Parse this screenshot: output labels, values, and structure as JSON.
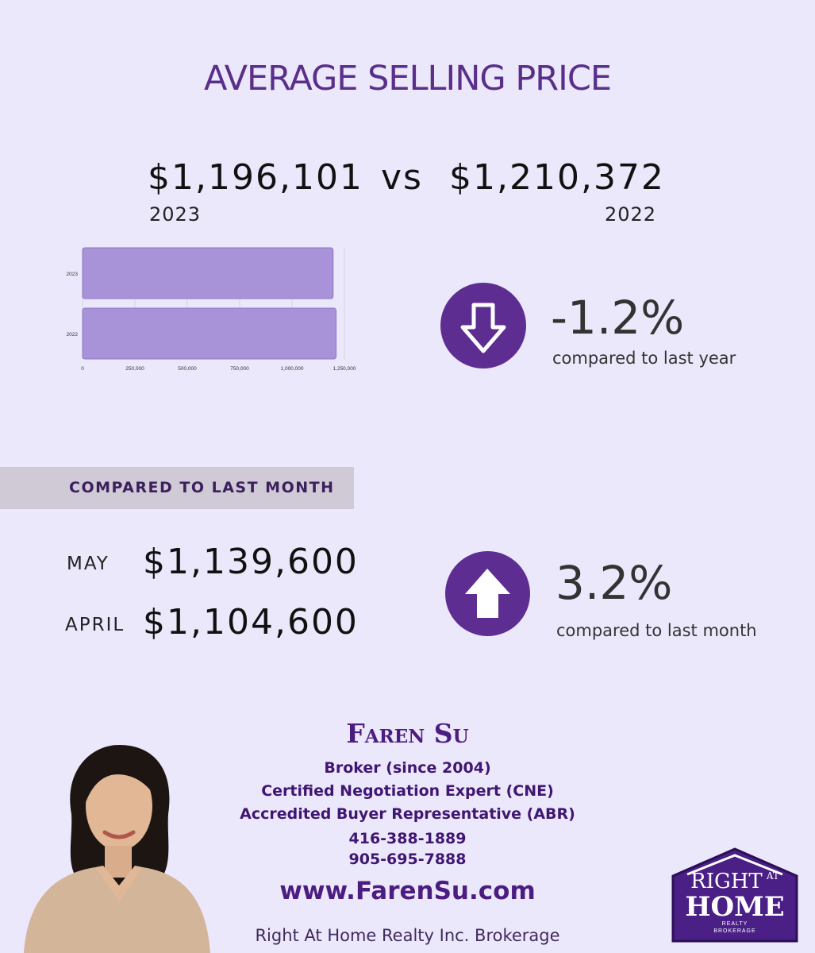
{
  "title": "AVERAGE SELLING PRICE",
  "yearly": {
    "price_2023": "$1,196,101",
    "vs": "vs",
    "price_2022": "$1,210,372",
    "label_2023": "2023",
    "label_2022": "2022",
    "change": "-1.2%",
    "change_caption": "compared to last year",
    "direction_icon": "arrow-down-icon"
  },
  "chart_data": {
    "type": "bar",
    "orientation": "horizontal",
    "categories": [
      "2023",
      "2022"
    ],
    "values": [
      1196101,
      1210372
    ],
    "xlim": [
      0,
      1250000
    ],
    "x_ticks": [
      "0",
      "250,000",
      "500,000",
      "750,000",
      "1,000,000",
      "1,250,000"
    ],
    "bar_color": "#a892d8",
    "grid": true
  },
  "monthly": {
    "banner": "COMPARED TO LAST MONTH",
    "month1_label": "MAY",
    "month1_price": "$1,139,600",
    "month2_label": "APRIL",
    "month2_price": "$1,104,600",
    "change": "3.2%",
    "change_caption": "compared to last month",
    "direction_icon": "arrow-up-icon"
  },
  "agent": {
    "name": "Faren Su",
    "line1": "Broker (since 2004)",
    "line2": "Certified Negotiation Expert (CNE)",
    "line3": "Accredited Buyer Representative (ABR)",
    "phone1": "416-388-1889",
    "phone2": "905-695-7888",
    "website": "www.FarenSu.com",
    "brokerage": "Right At Home Realty Inc. Brokerage"
  },
  "logo": {
    "line1": "RIGHT",
    "line1b": "AT",
    "line2": "HOME",
    "line3": "REALTY",
    "line4": "BROKERAGE"
  },
  "colors": {
    "background": "#ece8fb",
    "accent": "#5e2d91",
    "bar": "#a892d8"
  }
}
